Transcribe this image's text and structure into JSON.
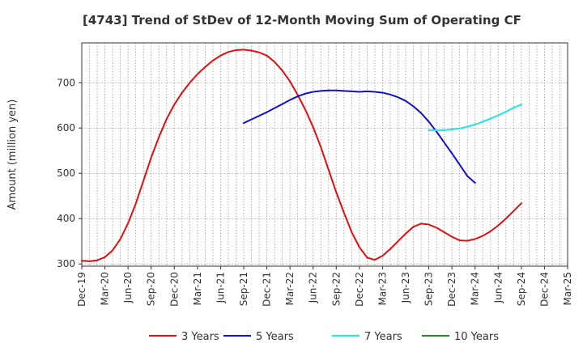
{
  "chart_data": {
    "type": "line",
    "title": "[4743]  Trend of StDev of 12-Month Moving Sum of Operating CF",
    "xlabel": "",
    "ylabel": "Amount (million yen)",
    "x_ticks": [
      "Dec-19",
      "Mar-20",
      "Jun-20",
      "Sep-20",
      "Dec-20",
      "Mar-21",
      "Jun-21",
      "Sep-21",
      "Dec-21",
      "Mar-22",
      "Jun-22",
      "Sep-22",
      "Dec-22",
      "Mar-23",
      "Jun-23",
      "Sep-23",
      "Dec-23",
      "Mar-24",
      "Jun-24",
      "Sep-24",
      "Dec-24",
      "Mar-25"
    ],
    "y_ticks": [
      300,
      400,
      500,
      600,
      700
    ],
    "ylim": [
      295,
      788
    ],
    "grid": true,
    "legend_position": "bottom",
    "series": [
      {
        "name": "3 Years",
        "color": "#e01010",
        "start_index": 0,
        "values": [
          307,
          306,
          308,
          315,
          330,
          355,
          390,
          433,
          484,
          535,
          580,
          620,
          652,
          678,
          700,
          719,
          735,
          749,
          760,
          768,
          772,
          773,
          771,
          767,
          760,
          746,
          727,
          703,
          673,
          640,
          602,
          558,
          508,
          458,
          413,
          370,
          337,
          314,
          309,
          318,
          333,
          350,
          367,
          382,
          389,
          387,
          380,
          370,
          360,
          352,
          351,
          355,
          362,
          372,
          385,
          400,
          417,
          434
        ]
      },
      {
        "name": "5 Years",
        "color": "#1010cc",
        "start_index": 21,
        "values": [
          611,
          619,
          627,
          635,
          644,
          653,
          662,
          670,
          676,
          680,
          682,
          683,
          683,
          682,
          681,
          680,
          681,
          680,
          678,
          674,
          668,
          660,
          648,
          633,
          614,
          592,
          568,
          544,
          519,
          494,
          479
        ]
      },
      {
        "name": "7 Years",
        "color": "#22e5e5",
        "start_index": 45,
        "values": [
          595,
          595,
          595,
          597,
          599,
          603,
          608,
          614,
          621,
          628,
          636,
          645,
          652
        ]
      },
      {
        "name": "10 Years",
        "color": "#228b22",
        "start_index": 0,
        "values": []
      }
    ]
  }
}
